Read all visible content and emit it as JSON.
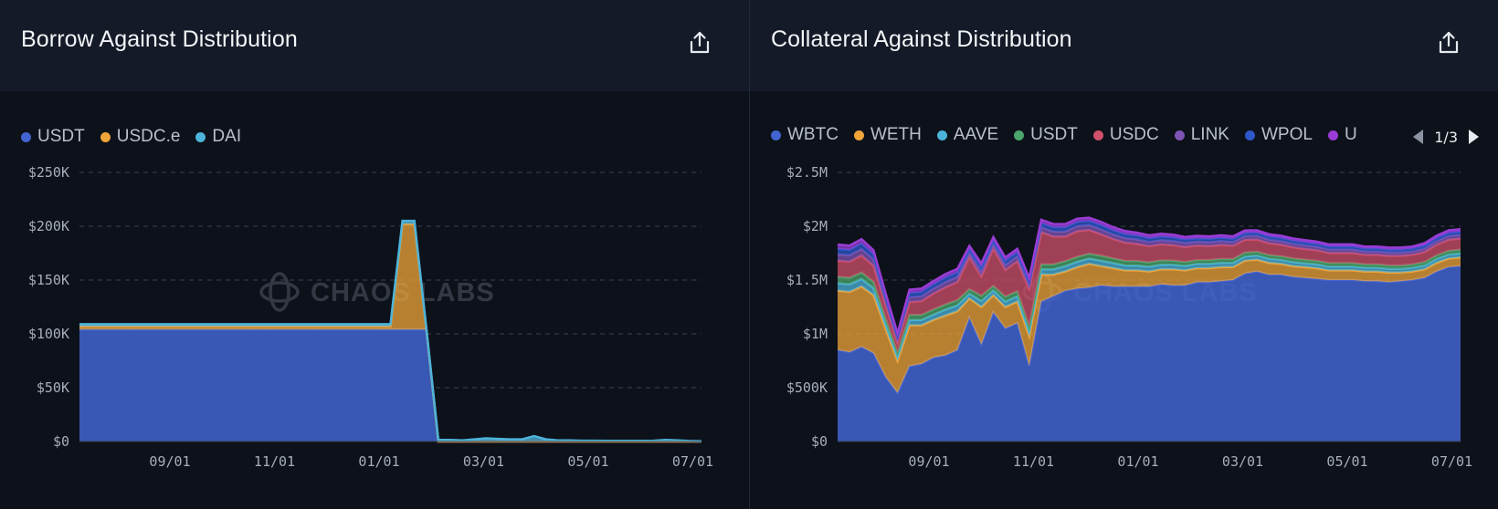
{
  "panels": {
    "left": {
      "title": "Borrow Against Distribution"
    },
    "right": {
      "title": "Collateral Against Distribution",
      "pager": "1/3"
    }
  },
  "watermark": "CHAOS LABS",
  "icons": [
    "share-icon",
    "chevron-left-icon",
    "chevron-right-icon",
    "chaos-labs-logo-icon"
  ],
  "chart_data": [
    {
      "type": "area",
      "title": "Borrow Against Distribution",
      "stacked": true,
      "x": [
        "07/12",
        "07/19",
        "07/26",
        "08/02",
        "08/09",
        "08/16",
        "08/23",
        "08/30",
        "09/06",
        "09/13",
        "09/20",
        "09/27",
        "10/04",
        "10/11",
        "10/18",
        "10/25",
        "11/01",
        "11/08",
        "11/15",
        "11/22",
        "11/29",
        "12/06",
        "12/13",
        "12/20",
        "12/27",
        "01/03",
        "01/10",
        "01/17",
        "01/24",
        "01/31",
        "02/07",
        "02/14",
        "02/21",
        "02/28",
        "03/07",
        "03/14",
        "03/21",
        "03/28",
        "04/04",
        "04/11",
        "04/18",
        "04/25",
        "05/02",
        "05/09",
        "05/16",
        "05/23",
        "05/30",
        "06/06",
        "06/13",
        "06/20",
        "06/27",
        "07/04",
        "07/11"
      ],
      "x_ticks": [
        "09/01",
        "11/01",
        "01/01",
        "03/01",
        "05/01",
        "07/01"
      ],
      "series": [
        {
          "name": "USDT",
          "color": "#4264d0",
          "values": [
            104000,
            104000,
            104000,
            104000,
            104000,
            104000,
            104000,
            104000,
            104000,
            104000,
            104000,
            104000,
            104000,
            104000,
            104000,
            104000,
            104000,
            104000,
            104000,
            104000,
            104000,
            104000,
            104000,
            104000,
            104000,
            104000,
            104000,
            104000,
            104000,
            104000,
            0,
            0,
            0,
            0,
            0,
            0,
            0,
            0,
            0,
            0,
            0,
            0,
            0,
            0,
            0,
            0,
            0,
            0,
            0,
            0,
            0,
            0,
            0
          ]
        },
        {
          "name": "USDC.e",
          "color": "#f0a53a",
          "values": [
            3000,
            3000,
            3000,
            3000,
            3000,
            3000,
            3000,
            3000,
            3000,
            3000,
            3000,
            3000,
            3000,
            3000,
            3000,
            3000,
            3000,
            3000,
            3000,
            3000,
            3000,
            3000,
            3000,
            3000,
            3000,
            3000,
            3000,
            98000,
            98000,
            0,
            0,
            0,
            0,
            0,
            0,
            0,
            0,
            0,
            0,
            0,
            0,
            0,
            0,
            0,
            0,
            0,
            0,
            0,
            0,
            0,
            0,
            0,
            0
          ]
        },
        {
          "name": "DAI",
          "color": "#4cb3da",
          "values": [
            2000,
            2000,
            2000,
            2000,
            2000,
            2000,
            2000,
            2000,
            2000,
            2000,
            2000,
            2000,
            2000,
            2000,
            2000,
            2000,
            2000,
            2000,
            2000,
            2000,
            2000,
            2000,
            2000,
            2000,
            2000,
            2000,
            2000,
            3000,
            3000,
            1000,
            1500,
            1500,
            1000,
            2000,
            3000,
            2500,
            2000,
            2000,
            5000,
            2000,
            1000,
            1000,
            800,
            800,
            600,
            600,
            600,
            600,
            800,
            1500,
            1000,
            500,
            300
          ]
        }
      ],
      "ylim": [
        0,
        250000
      ],
      "y_ticks": [
        "$0",
        "$50K",
        "$100K",
        "$150K",
        "$200K",
        "$250K"
      ],
      "grid": true,
      "legend": "top-left"
    },
    {
      "type": "area",
      "title": "Collateral Against Distribution",
      "stacked": true,
      "x": [
        "07/12",
        "07/19",
        "07/26",
        "08/02",
        "08/09",
        "08/16",
        "08/23",
        "08/30",
        "09/06",
        "09/13",
        "09/20",
        "09/27",
        "10/04",
        "10/11",
        "10/18",
        "10/25",
        "11/01",
        "11/08",
        "11/15",
        "11/22",
        "11/29",
        "12/06",
        "12/13",
        "12/20",
        "12/27",
        "01/03",
        "01/10",
        "01/17",
        "01/24",
        "01/31",
        "02/07",
        "02/14",
        "02/21",
        "02/28",
        "03/07",
        "03/14",
        "03/21",
        "03/28",
        "04/04",
        "04/11",
        "04/18",
        "04/25",
        "05/02",
        "05/09",
        "05/16",
        "05/23",
        "05/30",
        "06/06",
        "06/13",
        "06/20",
        "06/27",
        "07/04",
        "07/11"
      ],
      "x_ticks": [
        "09/01",
        "11/01",
        "01/01",
        "03/01",
        "05/01",
        "07/01"
      ],
      "series": [
        {
          "name": "WBTC",
          "color": "#4264d0",
          "values": [
            850000,
            830000,
            880000,
            820000,
            600000,
            450000,
            700000,
            720000,
            780000,
            800000,
            850000,
            1150000,
            900000,
            1200000,
            1050000,
            1100000,
            700000,
            1300000,
            1350000,
            1400000,
            1420000,
            1430000,
            1450000,
            1440000,
            1440000,
            1440000,
            1440000,
            1460000,
            1450000,
            1450000,
            1480000,
            1480000,
            1490000,
            1500000,
            1560000,
            1580000,
            1550000,
            1550000,
            1530000,
            1520000,
            1510000,
            1500000,
            1500000,
            1500000,
            1490000,
            1490000,
            1480000,
            1490000,
            1500000,
            1520000,
            1580000,
            1620000,
            1630000
          ]
        },
        {
          "name": "WETH",
          "color": "#f0a53a",
          "values": [
            550000,
            560000,
            560000,
            540000,
            450000,
            300000,
            380000,
            360000,
            350000,
            370000,
            360000,
            180000,
            350000,
            160000,
            200000,
            200000,
            280000,
            250000,
            200000,
            180000,
            200000,
            220000,
            180000,
            170000,
            150000,
            150000,
            140000,
            140000,
            150000,
            140000,
            130000,
            130000,
            130000,
            120000,
            120000,
            110000,
            110000,
            100000,
            100000,
            100000,
            100000,
            90000,
            90000,
            90000,
            90000,
            90000,
            90000,
            80000,
            80000,
            80000,
            80000,
            80000,
            80000
          ]
        },
        {
          "name": "AAVE",
          "color": "#4cb3da",
          "values": [
            70000,
            70000,
            70000,
            65000,
            50000,
            40000,
            50000,
            50000,
            50000,
            55000,
            55000,
            45000,
            55000,
            45000,
            50000,
            50000,
            45000,
            50000,
            50000,
            50000,
            50000,
            50000,
            50000,
            48000,
            46000,
            45000,
            44000,
            43000,
            42000,
            41000,
            40000,
            40000,
            40000,
            39000,
            39000,
            38000,
            38000,
            37000,
            37000,
            36000,
            36000,
            35000,
            35000,
            35000,
            34000,
            34000,
            34000,
            34000,
            34000,
            35000,
            36000,
            37000,
            37000
          ]
        },
        {
          "name": "USDT",
          "color": "#4ca66c",
          "values": [
            60000,
            60000,
            60000,
            58000,
            45000,
            35000,
            45000,
            45000,
            45000,
            48000,
            48000,
            40000,
            48000,
            40000,
            45000,
            45000,
            40000,
            45000,
            45000,
            45000,
            45000,
            45000,
            45000,
            43000,
            42000,
            41000,
            40000,
            39000,
            38000,
            37000,
            36000,
            36000,
            36000,
            35000,
            35000,
            34000,
            34000,
            33000,
            33000,
            33000,
            32000,
            32000,
            32000,
            32000,
            31000,
            31000,
            31000,
            31000,
            31000,
            32000,
            33000,
            34000,
            34000
          ]
        },
        {
          "name": "USDC",
          "color": "#d1506b",
          "values": [
            150000,
            150000,
            160000,
            150000,
            120000,
            90000,
            120000,
            130000,
            150000,
            160000,
            170000,
            300000,
            180000,
            350000,
            250000,
            280000,
            350000,
            300000,
            260000,
            230000,
            240000,
            220000,
            200000,
            180000,
            170000,
            160000,
            150000,
            150000,
            145000,
            140000,
            135000,
            130000,
            130000,
            125000,
            120000,
            115000,
            110000,
            110000,
            105000,
            100000,
            100000,
            95000,
            95000,
            95000,
            90000,
            90000,
            90000,
            90000,
            90000,
            95000,
            100000,
            105000,
            105000
          ]
        },
        {
          "name": "LINK",
          "color": "#7e54b4",
          "values": [
            60000,
            60000,
            60000,
            58000,
            45000,
            35000,
            45000,
            45000,
            45000,
            48000,
            48000,
            40000,
            48000,
            40000,
            45000,
            45000,
            40000,
            45000,
            45000,
            45000,
            45000,
            45000,
            45000,
            43000,
            42000,
            41000,
            40000,
            39000,
            38000,
            37000,
            36000,
            36000,
            36000,
            35000,
            35000,
            34000,
            34000,
            33000,
            33000,
            33000,
            32000,
            32000,
            32000,
            32000,
            31000,
            31000,
            31000,
            31000,
            31000,
            32000,
            33000,
            34000,
            34000
          ]
        },
        {
          "name": "WPOL",
          "color": "#2e57c8",
          "values": [
            50000,
            50000,
            50000,
            48000,
            40000,
            30000,
            40000,
            40000,
            40000,
            42000,
            42000,
            35000,
            42000,
            35000,
            40000,
            40000,
            35000,
            40000,
            40000,
            40000,
            40000,
            40000,
            40000,
            38000,
            37000,
            36000,
            35000,
            34000,
            33000,
            32000,
            31000,
            31000,
            31000,
            30000,
            30000,
            29000,
            29000,
            28000,
            28000,
            28000,
            27000,
            27000,
            27000,
            27000,
            26000,
            26000,
            26000,
            26000,
            26000,
            27000,
            28000,
            29000,
            29000
          ]
        },
        {
          "name": "U",
          "color": "#9a3cd6",
          "values": [
            40000,
            40000,
            40000,
            38000,
            30000,
            25000,
            30000,
            30000,
            30000,
            32000,
            32000,
            28000,
            32000,
            28000,
            30000,
            30000,
            28000,
            30000,
            30000,
            30000,
            30000,
            30000,
            30000,
            29000,
            28000,
            27000,
            26000,
            25000,
            25000,
            24000,
            23000,
            23000,
            23000,
            22000,
            22000,
            22000,
            21000,
            21000,
            21000,
            21000,
            20000,
            20000,
            20000,
            20000,
            20000,
            20000,
            20000,
            20000,
            20000,
            21000,
            22000,
            23000,
            23000
          ]
        }
      ],
      "ylim": [
        0,
        2500000
      ],
      "y_ticks": [
        "$0",
        "$500K",
        "$1M",
        "$1.5M",
        "$2M",
        "$2.5M"
      ],
      "grid": true,
      "legend": "top-left"
    }
  ]
}
